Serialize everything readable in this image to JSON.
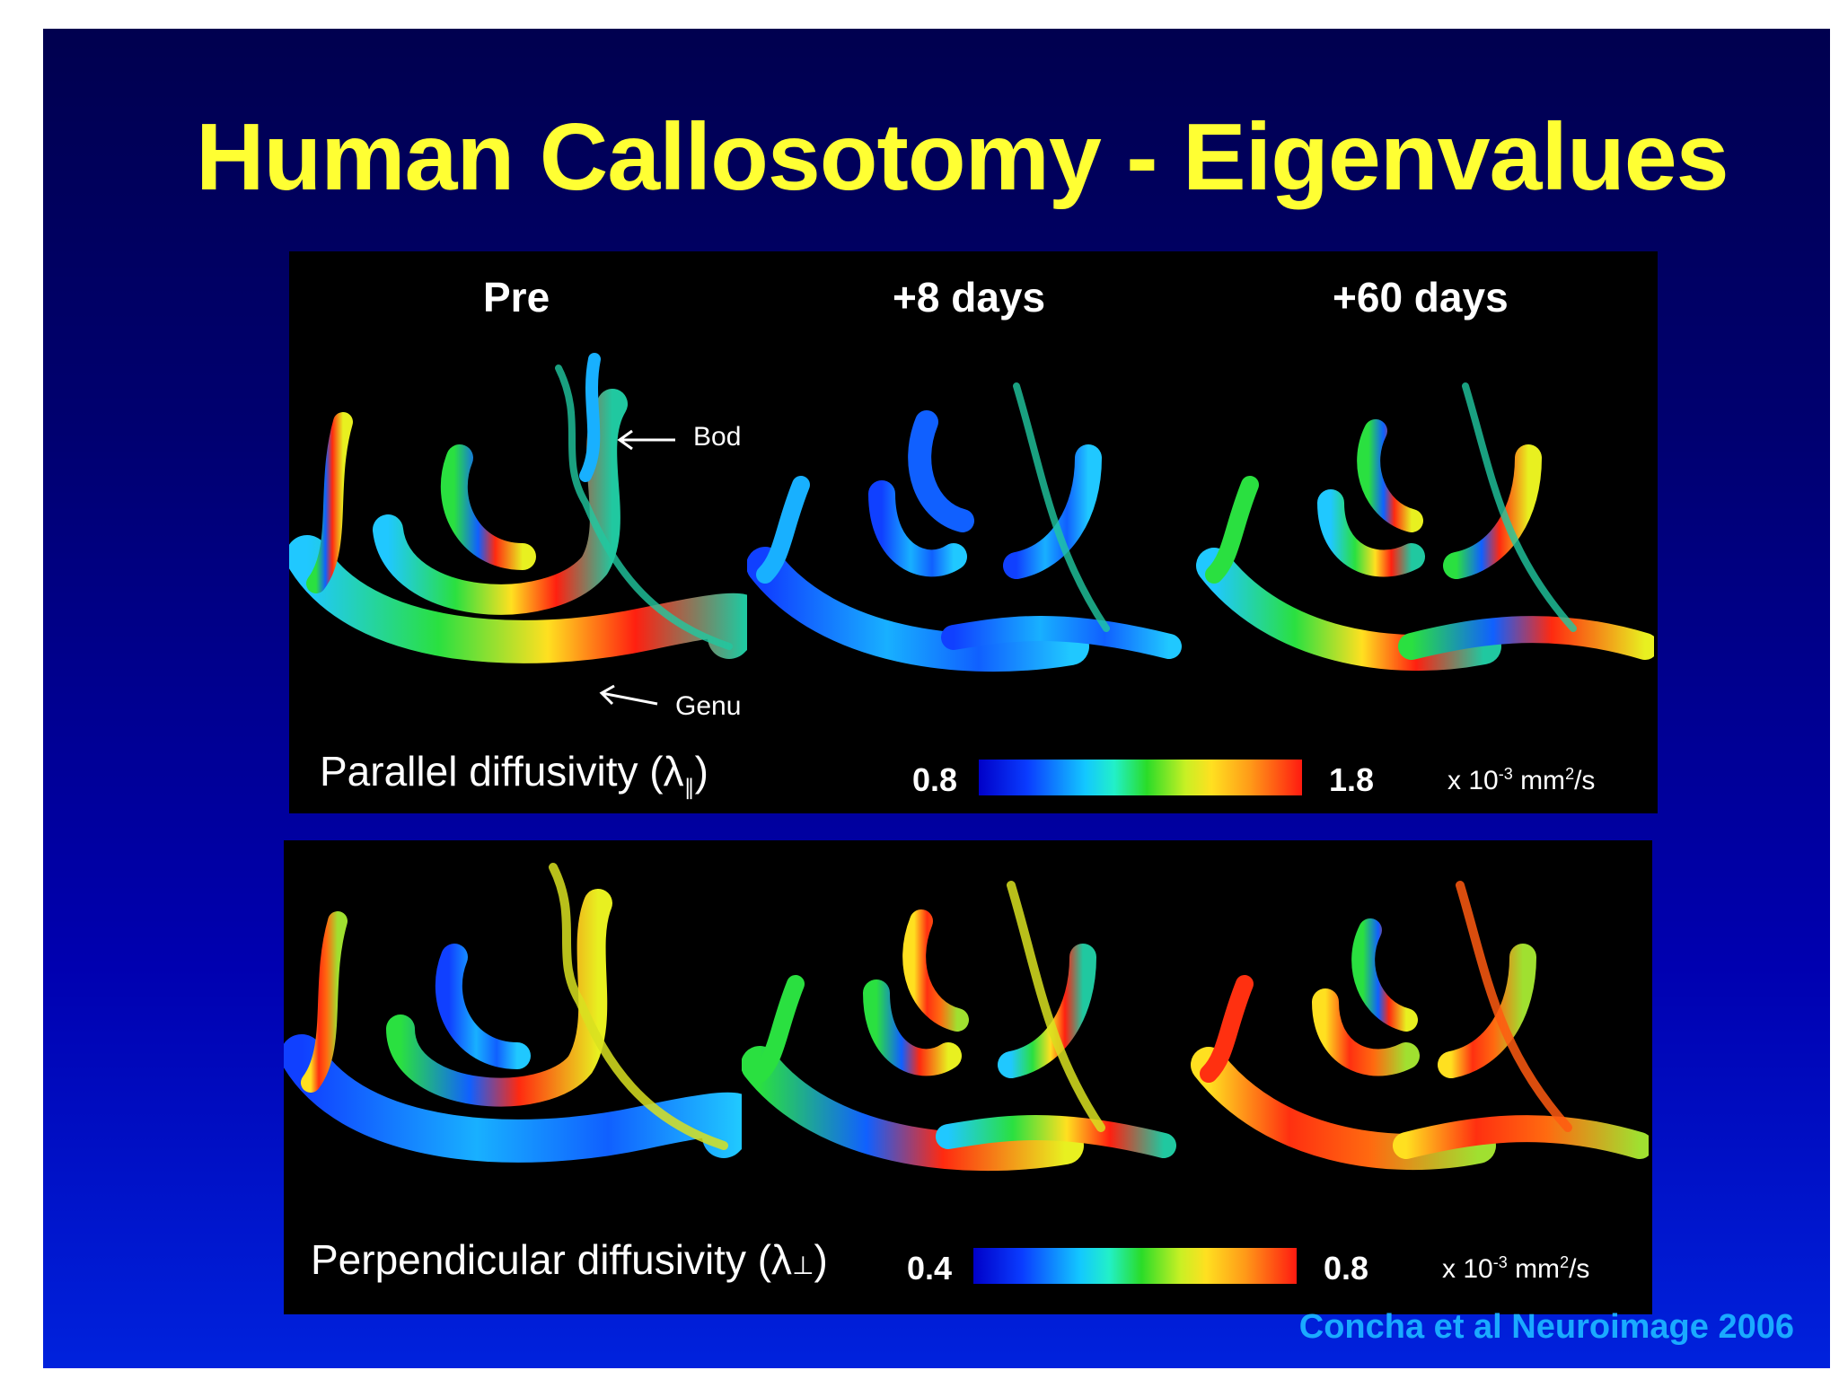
{
  "slide": {
    "title": "Human Callosotomy - Eigenvalues",
    "credit": "Concha et al  Neuroimage 2006"
  },
  "figure": {
    "columns": [
      "Pre",
      "+8 days",
      "+60 days"
    ],
    "annotations": {
      "body": "Bod",
      "genu": "Genu"
    },
    "top_panel": {
      "caption": "Parallel diffusivity (λ",
      "caption_sub": "∥",
      "caption_close": ")",
      "scale_min": "0.8",
      "scale_max": "1.8",
      "units_prefix": "x 10",
      "units_exp": "-3",
      "units_suffix": " mm",
      "units_exp2": "2",
      "units_tail": "/s"
    },
    "bottom_panel": {
      "caption": "Perpendicular diffusivity (λ",
      "caption_sub": "⊥",
      "caption_close": ")",
      "scale_min": "0.4",
      "scale_max": "0.8",
      "units_prefix": "x 10",
      "units_exp": "-3",
      "units_suffix": " mm",
      "units_exp2": "2",
      "units_tail": "/s"
    }
  },
  "colors": {
    "title": "#ffff33",
    "credit": "#1aaaff"
  }
}
